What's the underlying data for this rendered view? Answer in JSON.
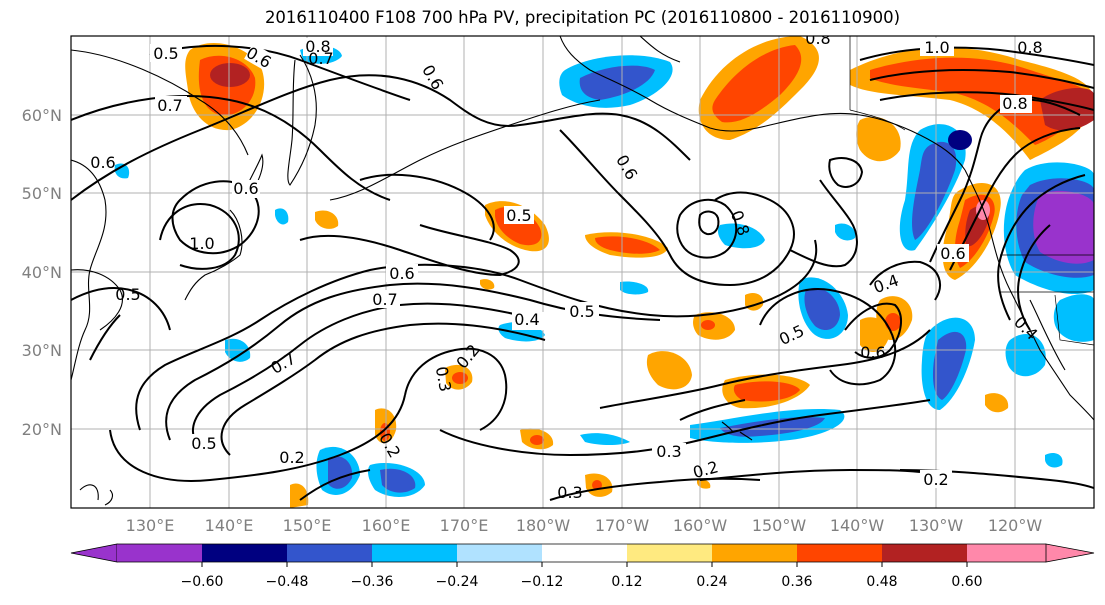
{
  "title": "2016110400 F108 700 hPa PV, precipitation PC (2016110800 - 2016110900)",
  "map": {
    "lat_labels": [
      "60°N",
      "50°N",
      "40°N",
      "30°N",
      "20°N"
    ],
    "lon_labels": [
      "130°E",
      "140°E",
      "150°E",
      "160°E",
      "170°E",
      "180°W",
      "170°W",
      "160°W",
      "150°W",
      "140°W",
      "130°W",
      "120°W"
    ],
    "contour_labels": [
      "0.5",
      "0.6",
      "0.8",
      "0.7",
      "0.7",
      "0.6",
      "0.6",
      "0.5",
      "0.6",
      "0.6",
      "0.7",
      "0.5",
      "0.5",
      "0.4",
      "0.5",
      "0.6",
      "0.4",
      "0.2",
      "0.3",
      "0.3",
      "0.2",
      "0.2",
      "0.3",
      "0.2",
      "0.2",
      "1.0",
      "0.8",
      "0.8",
      "0.8",
      "0.8",
      "0.6",
      "0.4",
      "1.0",
      "0.5",
      "0.6",
      "0.7"
    ],
    "colors": {
      "contour": "#000000",
      "grid": "#b0b0b0",
      "coast": "#000000"
    }
  },
  "colorbar": {
    "tick_labels": [
      "−0.60",
      "−0.48",
      "−0.36",
      "−0.24",
      "−0.12",
      "0.12",
      "0.24",
      "0.36",
      "0.48",
      "0.60"
    ],
    "colors": [
      "#9933cc",
      "#000080",
      "#3355cc",
      "#00bfff",
      "#b0e2ff",
      "#ffffff",
      "#ffea80",
      "#ffa500",
      "#ff4500",
      "#b22222",
      "#ff88aa"
    ]
  }
}
